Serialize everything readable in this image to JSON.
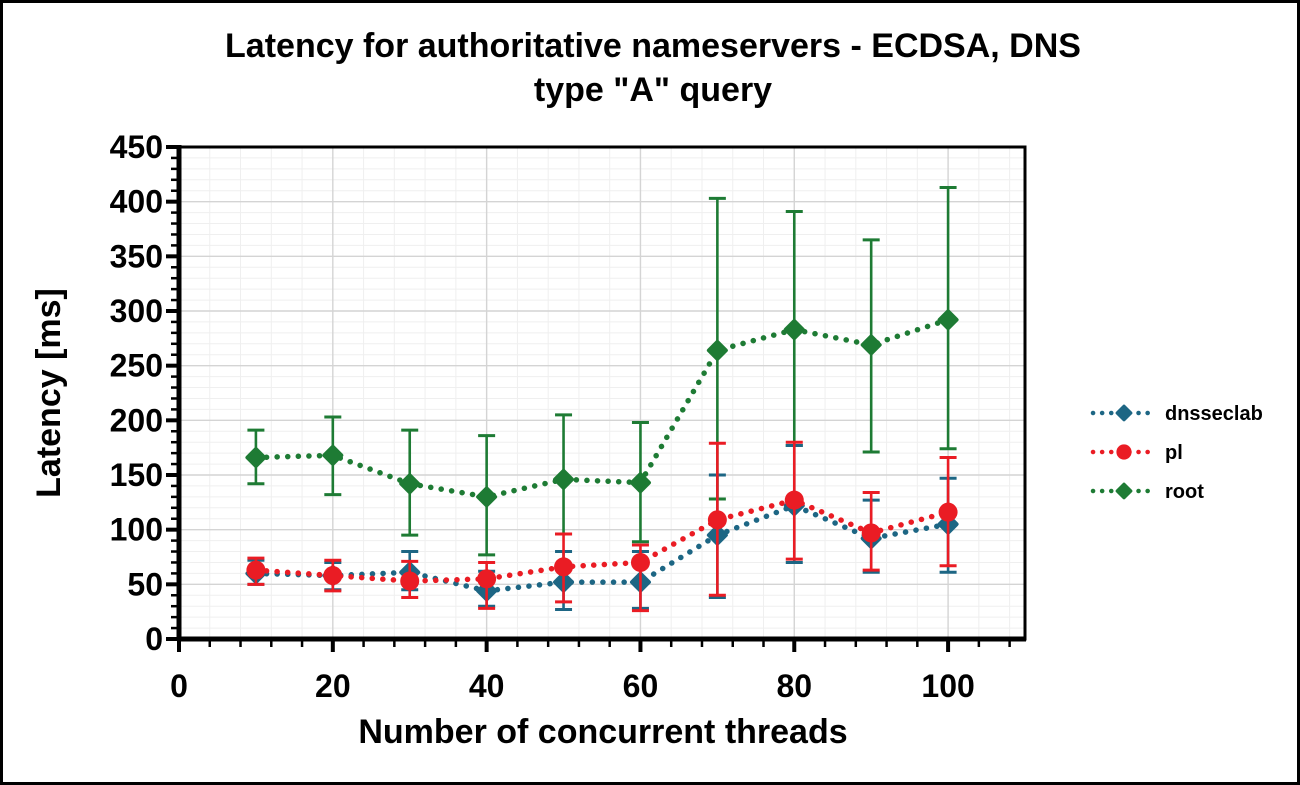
{
  "chart_data": {
    "type": "line",
    "title_line1": "Latency for authoritative nameservers - ECDSA, DNS",
    "title_line2": "type \"A\" query",
    "xlabel": "Number of concurrent threads",
    "ylabel": "Latency [ms]",
    "xlim": [
      0,
      110
    ],
    "ylim": [
      0,
      450
    ],
    "x_ticks": [
      0,
      20,
      40,
      60,
      80,
      100
    ],
    "y_ticks": [
      0,
      50,
      100,
      150,
      200,
      250,
      300,
      350,
      400,
      450
    ],
    "x_minor_step": 4,
    "y_minor_step": 10,
    "grid": true,
    "legend_position": "right-outside",
    "error_bars": true,
    "x": [
      10,
      20,
      30,
      40,
      50,
      60,
      70,
      80,
      90,
      100
    ],
    "series": [
      {
        "name": "dnsseclab",
        "color": "#1D6684",
        "marker": "diamond",
        "values": [
          60,
          58,
          61,
          44,
          52,
          52,
          95,
          122,
          92,
          105
        ],
        "err_low": [
          50,
          45,
          45,
          30,
          27,
          28,
          38,
          70,
          61,
          61
        ],
        "err_high": [
          72,
          70,
          80,
          62,
          80,
          80,
          150,
          177,
          127,
          147
        ]
      },
      {
        "name": "pl",
        "color": "#EA1C24",
        "marker": "circle",
        "values": [
          63,
          58,
          53,
          55,
          66,
          70,
          109,
          127,
          97,
          116
        ],
        "err_low": [
          50,
          44,
          38,
          28,
          34,
          26,
          40,
          73,
          63,
          67
        ],
        "err_high": [
          74,
          72,
          71,
          70,
          96,
          86,
          179,
          180,
          134,
          166
        ]
      },
      {
        "name": "root",
        "color": "#1E7B34",
        "marker": "diamond",
        "values": [
          166,
          168,
          142,
          130,
          146,
          143,
          264,
          283,
          269,
          292
        ],
        "err_low": [
          142,
          132,
          95,
          77,
          96,
          89,
          128,
          177,
          171,
          174
        ],
        "err_high": [
          191,
          203,
          191,
          186,
          205,
          198,
          403,
          391,
          365,
          413
        ]
      }
    ]
  }
}
